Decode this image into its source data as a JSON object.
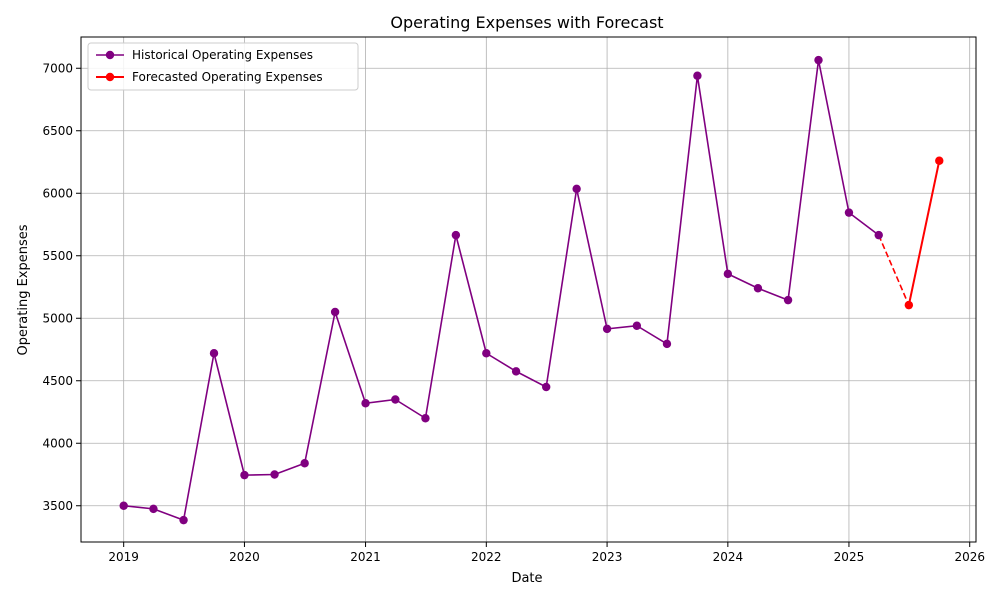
{
  "chart_data": {
    "type": "line",
    "title": "Operating Expenses with Forecast",
    "xlabel": "Date",
    "ylabel": "Operating Expenses",
    "xlim": [
      "2018-08-25",
      "2026-01-20"
    ],
    "ylim": [
      3210,
      7250
    ],
    "x_ticks": [
      "2019",
      "2020",
      "2021",
      "2022",
      "2023",
      "2024",
      "2025",
      "2026"
    ],
    "y_ticks": [
      3500,
      4000,
      4500,
      5000,
      5500,
      6000,
      6500,
      7000
    ],
    "grid": true,
    "legend_position": "top-left",
    "series": [
      {
        "name": "Historical Operating Expenses",
        "color": "#800080",
        "style": "solid",
        "marker": "circle",
        "x": [
          "2019-01-01",
          "2019-04-01",
          "2019-07-01",
          "2019-10-01",
          "2020-01-01",
          "2020-04-01",
          "2020-07-01",
          "2020-10-01",
          "2021-01-01",
          "2021-04-01",
          "2021-07-01",
          "2021-10-01",
          "2022-01-01",
          "2022-04-01",
          "2022-07-01",
          "2022-10-01",
          "2023-01-01",
          "2023-04-01",
          "2023-07-01",
          "2023-10-01",
          "2024-01-01",
          "2024-04-01",
          "2024-07-01",
          "2024-10-01",
          "2025-01-01",
          "2025-04-01"
        ],
        "values": [
          3500,
          3475,
          3385,
          4720,
          3745,
          3750,
          3840,
          5050,
          4320,
          4350,
          4200,
          5665,
          4720,
          4575,
          4450,
          6035,
          4915,
          4940,
          4795,
          6940,
          5355,
          5240,
          5145,
          7065,
          5845,
          5665
        ]
      },
      {
        "name": "Forecasted Operating Expenses",
        "color": "#ff0000",
        "style": "solid",
        "marker": "circle",
        "x": [
          "2025-07-01",
          "2025-10-01"
        ],
        "values": [
          5105,
          6260
        ]
      },
      {
        "name": "",
        "color": "#ff0000",
        "style": "dashed",
        "marker": "none",
        "x": [
          "2025-04-01",
          "2025-07-01"
        ],
        "values": [
          5665,
          5105
        ]
      }
    ]
  }
}
